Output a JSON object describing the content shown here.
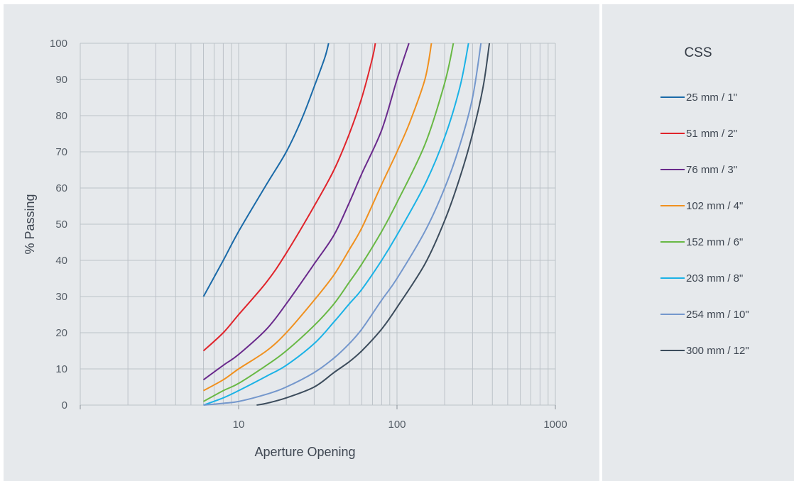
{
  "chart_data": {
    "type": "line",
    "title": "",
    "xlabel": "Aperture Opening",
    "ylabel": "% Passing",
    "xscale": "log",
    "xlim": [
      1,
      1000
    ],
    "ylim": [
      0,
      100
    ],
    "xticks": [
      "10",
      "100",
      "1000"
    ],
    "yticks": [
      "0",
      "10",
      "20",
      "30",
      "40",
      "50",
      "60",
      "70",
      "80",
      "90",
      "100"
    ],
    "grid": true,
    "legend_title": "CSS",
    "legend_position": "right",
    "series": [
      {
        "name": "25 mm / 1\"",
        "color": "#1a6aa8",
        "x": [
          6,
          8,
          10,
          15,
          20,
          25,
          30,
          35,
          37
        ],
        "y": [
          30,
          40,
          48,
          61,
          70,
          79,
          88,
          96,
          100
        ]
      },
      {
        "name": "51 mm / 2\"",
        "color": "#e0242b",
        "x": [
          6,
          8,
          10,
          15,
          20,
          30,
          40,
          50,
          60,
          70,
          73
        ],
        "y": [
          15,
          20,
          25,
          34,
          42,
          55,
          65,
          75,
          85,
          96,
          100
        ]
      },
      {
        "name": "76 mm / 3\"",
        "color": "#6a2a8c",
        "x": [
          6,
          8,
          10,
          15,
          20,
          30,
          40,
          50,
          60,
          80,
          100,
          119
        ],
        "y": [
          7,
          11,
          14,
          21,
          28,
          39,
          47,
          56,
          64,
          76,
          90,
          100
        ]
      },
      {
        "name": "102 mm / 4\"",
        "color": "#f0901e",
        "x": [
          6,
          8,
          10,
          15,
          20,
          30,
          40,
          50,
          60,
          80,
          100,
          120,
          150,
          165
        ],
        "y": [
          4,
          7,
          10,
          15,
          20,
          29,
          36,
          43,
          49,
          61,
          70,
          78,
          90,
          100
        ]
      },
      {
        "name": "152 mm / 6\"",
        "color": "#68b844",
        "x": [
          6,
          8,
          10,
          15,
          20,
          30,
          40,
          50,
          60,
          80,
          100,
          150,
          200,
          227
        ],
        "y": [
          1,
          4,
          6,
          11,
          15,
          22,
          28,
          34,
          39,
          48,
          56,
          72,
          89,
          100
        ]
      },
      {
        "name": "203 mm / 8\"",
        "color": "#1ab2e6",
        "x": [
          6,
          8,
          10,
          15,
          20,
          30,
          40,
          50,
          60,
          80,
          100,
          150,
          200,
          250,
          283
        ],
        "y": [
          0,
          2,
          4,
          8,
          11,
          17,
          23,
          28,
          32,
          40,
          47,
          61,
          74,
          88,
          100
        ]
      },
      {
        "name": "254 mm / 10\"",
        "color": "#7497cc",
        "x": [
          6,
          8,
          10,
          15,
          20,
          30,
          40,
          50,
          60,
          80,
          100,
          150,
          200,
          250,
          300,
          339
        ],
        "y": [
          0,
          0.5,
          1,
          3,
          5,
          9,
          13,
          17,
          21,
          29,
          35,
          48,
          60,
          72,
          85,
          100
        ]
      },
      {
        "name": "300 mm / 12\"",
        "color": "#3c4c5c",
        "x": [
          13,
          15,
          20,
          30,
          40,
          50,
          60,
          80,
          100,
          150,
          200,
          250,
          300,
          350,
          383
        ],
        "y": [
          0,
          0.5,
          2,
          5,
          9,
          12,
          15,
          21,
          27,
          39,
          51,
          63,
          75,
          88,
          100
        ]
      }
    ]
  }
}
